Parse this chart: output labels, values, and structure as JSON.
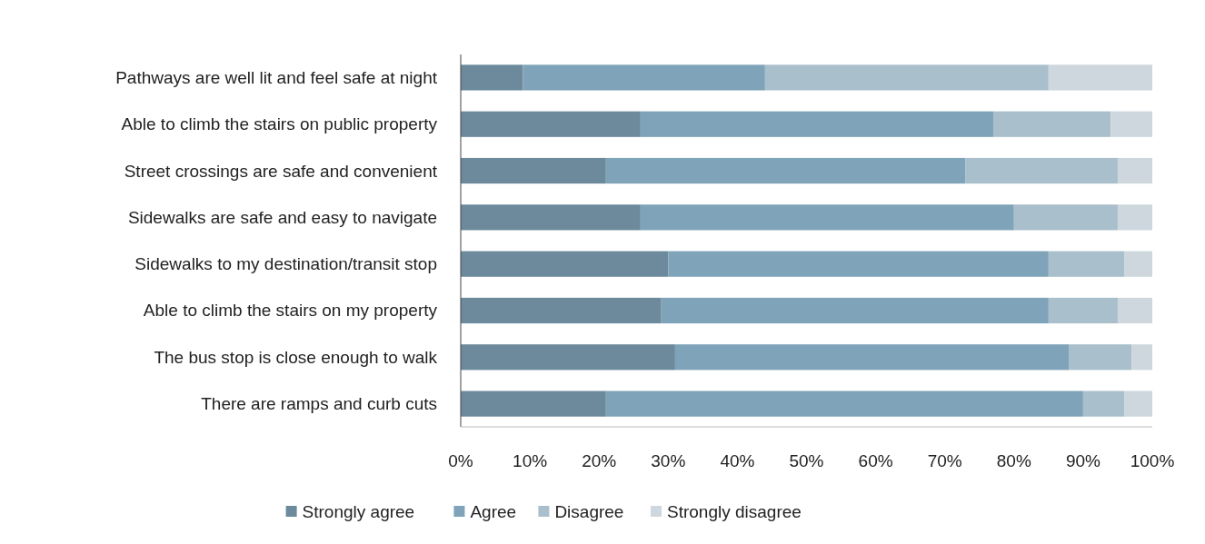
{
  "chart_data": {
    "type": "bar",
    "orientation": "horizontal",
    "stacked": true,
    "categories": [
      "Pathways are well lit and feel safe at night",
      "Able to climb the stairs on public property",
      "Street crossings are safe and convenient",
      "Sidewalks are safe and easy to navigate",
      "Sidewalks to my destination/transit stop",
      "Able to climb the stairs on my property",
      "The bus stop is close enough to walk",
      "There are ramps and curb cuts"
    ],
    "series": [
      {
        "name": "Strongly agree",
        "color": "#6d8a9c",
        "values": [
          9,
          26,
          21,
          26,
          30,
          29,
          31,
          21
        ]
      },
      {
        "name": "Agree",
        "color": "#7fa3b8",
        "values": [
          35,
          51,
          52,
          54,
          55,
          56,
          57,
          69
        ]
      },
      {
        "name": "Disagree",
        "color": "#a9bfcc",
        "values": [
          41,
          17,
          22,
          15,
          11,
          10,
          9,
          6
        ]
      },
      {
        "name": "Strongly disagree",
        "color": "#cdd7dd",
        "values": [
          15,
          6,
          5,
          5,
          4,
          5,
          3,
          4
        ]
      }
    ],
    "xlim": [
      0,
      100
    ],
    "xticks": [
      {
        "value": 0,
        "label": "0%"
      },
      {
        "value": 10,
        "label": "10%"
      },
      {
        "value": 20,
        "label": "20%"
      },
      {
        "value": 30,
        "label": "30%"
      },
      {
        "value": 40,
        "label": "40%"
      },
      {
        "value": 50,
        "label": "50%"
      },
      {
        "value": 60,
        "label": "60%"
      },
      {
        "value": 70,
        "label": "70%"
      },
      {
        "value": 80,
        "label": "80%"
      },
      {
        "value": 90,
        "label": "90%"
      },
      {
        "value": 100,
        "label": "100%"
      }
    ],
    "grid": false,
    "legend": "bottom"
  }
}
